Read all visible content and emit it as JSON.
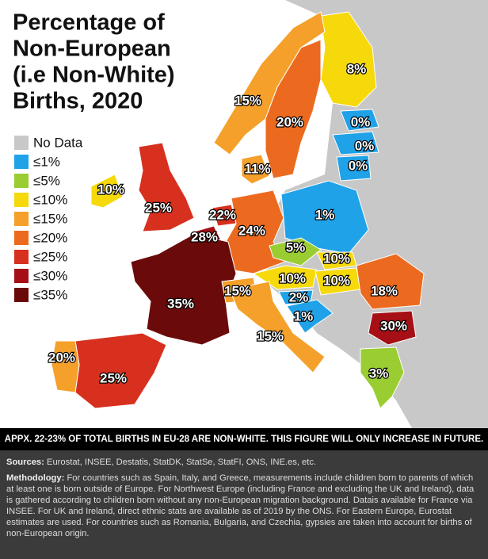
{
  "title_lines": [
    "Percentage of",
    "Non-European",
    "(i.e Non-White)",
    "Births, 2020"
  ],
  "legend": [
    {
      "label": "No Data",
      "color": "#c8c8c8"
    },
    {
      "label": "≤1%",
      "color": "#1fa2e8"
    },
    {
      "label": "≤5%",
      "color": "#9acd32"
    },
    {
      "label": "≤10%",
      "color": "#f5d90a"
    },
    {
      "label": "≤15%",
      "color": "#f5a02a"
    },
    {
      "label": "≤20%",
      "color": "#ec6a1f"
    },
    {
      "label": "≤25%",
      "color": "#d7301f"
    },
    {
      "label": "≤30%",
      "color": "#a50f15"
    },
    {
      "label": "≤35%",
      "color": "#6b0a0a"
    }
  ],
  "regions": [
    {
      "label": "8%",
      "color": "#f5d90a"
    },
    {
      "label": "15%",
      "color": "#f5a02a"
    },
    {
      "label": "20%",
      "color": "#ec6a1f"
    },
    {
      "label": "0%",
      "color": "#1fa2e8"
    },
    {
      "label": "0%",
      "color": "#1fa2e8"
    },
    {
      "label": "0%",
      "color": "#1fa2e8"
    },
    {
      "label": "11%",
      "color": "#f5a02a"
    },
    {
      "label": "10%",
      "color": "#f5d90a"
    },
    {
      "label": "25%",
      "color": "#d7301f"
    },
    {
      "label": "22%",
      "color": "#d7301f"
    },
    {
      "label": "28%",
      "color": "#a50f15"
    },
    {
      "label": "24%",
      "color": "#ec6a1f"
    },
    {
      "label": "1%",
      "color": "#1fa2e8"
    },
    {
      "label": "5%",
      "color": "#9acd32"
    },
    {
      "label": "10%",
      "color": "#f5d90a"
    },
    {
      "label": "10%",
      "color": "#f5d90a"
    },
    {
      "label": "10%",
      "color": "#f5d90a"
    },
    {
      "label": "2%",
      "color": "#1fa2e8"
    },
    {
      "label": "1%",
      "color": "#1fa2e8"
    },
    {
      "label": "18%",
      "color": "#ec6a1f"
    },
    {
      "label": "30%",
      "color": "#a50f15"
    },
    {
      "label": "3%",
      "color": "#9acd32"
    },
    {
      "label": "35%",
      "color": "#6b0a0a"
    },
    {
      "label": "15%",
      "color": "#f5a02a"
    },
    {
      "label": "15%",
      "color": "#f5a02a"
    },
    {
      "label": "25%",
      "color": "#d7301f"
    },
    {
      "label": "20%",
      "color": "#f5a02a"
    }
  ],
  "banner": "APPX. 22-23% OF TOTAL BIRTHS IN EU-28 ARE NON-WHITE. THIS FIGURE WILL ONLY INCREASE IN FUTURE.",
  "sources": {
    "label": "Sources:",
    "text": "Eurostat, INSEE, Destatis, StatDK, StatSe, StatFI, ONS, INE.es, etc."
  },
  "methodology": {
    "label": "Methodology:",
    "text": "For countries such as Spain, Italy, and Greece, measurements include children born to parents of which at least one is born outside of Europe. For Northwest Europe (including France and excluding the UK and Ireland), data is gathered according to children born without any non-European migration background. Datais available for France via INSEE. For UK and Ireland, direct ethnic stats are available as of 2019 by the ONS. For Eastern Europe, Eurostat estimates are used. For countries such as Romania, Bulgaria, and Czechia, gypsies are taken into account for births of non-European origin."
  }
}
